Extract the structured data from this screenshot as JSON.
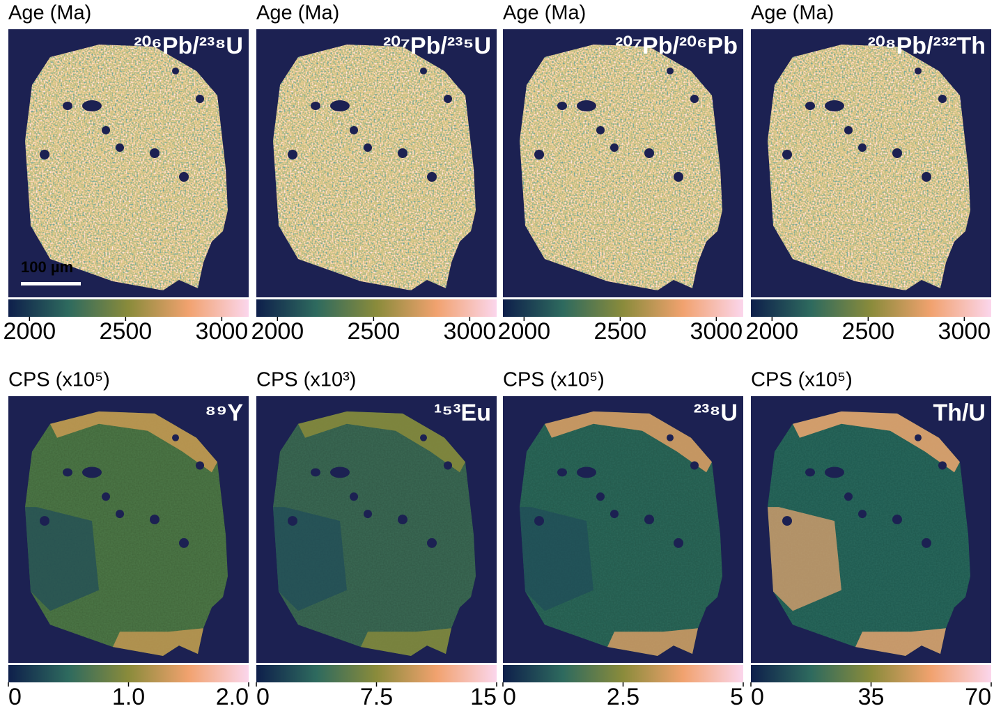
{
  "chart_data": [
    {
      "type": "image",
      "title": "Age (Ma)",
      "label": "²⁰⁶Pb/²³⁸U",
      "scale_bar": "100 µm",
      "clim": [
        1890,
        3140
      ],
      "cticks": [
        2000,
        2500,
        3000
      ]
    },
    {
      "type": "image",
      "title": "Age (Ma)",
      "label": "²⁰⁷Pb/²³⁵U",
      "clim": [
        1890,
        3140
      ],
      "cticks": [
        2000,
        2500,
        3000
      ]
    },
    {
      "type": "image",
      "title": "Age (Ma)",
      "label": "²⁰⁷Pb/²⁰⁶Pb",
      "clim": [
        1890,
        3140
      ],
      "cticks": [
        2000,
        2500,
        3000
      ]
    },
    {
      "type": "image",
      "title": "Age (Ma)",
      "label": "²⁰⁸Pb/²³²Th",
      "clim": [
        1890,
        3140
      ],
      "cticks": [
        2000,
        2500,
        3000
      ]
    },
    {
      "type": "image",
      "title": "CPS (x10⁵)",
      "label": "⁸⁹Y",
      "clim": [
        0,
        2
      ],
      "cticks": [
        0,
        {
          "value": 1,
          "label": "1.0"
        },
        {
          "value": 2,
          "label": "2.0"
        }
      ]
    },
    {
      "type": "image",
      "title": "CPS (x10³)",
      "label": "¹⁵³Eu",
      "clim": [
        0,
        15
      ],
      "cticks": [
        0,
        7.5,
        15
      ]
    },
    {
      "type": "image",
      "title": "CPS (x10⁵)",
      "label": "²³⁸U",
      "clim": [
        0,
        5
      ],
      "cticks": [
        0,
        2.5,
        5
      ]
    },
    {
      "type": "image",
      "title": "CPS (x10⁵)",
      "label": "Th/U",
      "clim": [
        0,
        70
      ],
      "cticks": [
        0,
        35,
        70
      ]
    }
  ]
}
